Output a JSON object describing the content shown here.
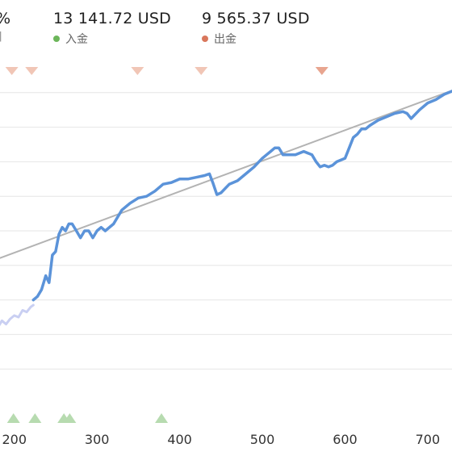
{
  "header": {
    "stats": [
      {
        "value": "%"
      },
      {
        "value": "13 141.72 USD",
        "legend": "入金",
        "color": "#6cb65a"
      },
      {
        "value": "9 565.37 USD",
        "legend": "出金",
        "color": "#d9775c"
      }
    ],
    "left_sublabel": "]"
  },
  "colors": {
    "line": "#5b93d9",
    "line_faded": "#c9cff2",
    "trend": "#b3b3b3",
    "grid": "#e6e6e6",
    "deposit_marker": "#b7dbb0",
    "withdraw_marker": "#f1c6b6",
    "withdraw_marker_strong": "#e8a58f"
  },
  "chart_data": {
    "type": "line",
    "title": "",
    "xlabel": "",
    "ylabel": "",
    "xlim": [
      170,
      745
    ],
    "ylim": [
      0,
      100
    ],
    "x_ticks": [
      200,
      300,
      400,
      500,
      600,
      700
    ],
    "gridlines_y": [
      10,
      20,
      30,
      40,
      50,
      60,
      70,
      80,
      90
    ],
    "grid": "horizontal",
    "series": [
      {
        "style": "faded",
        "x": [
          170,
          175,
          180,
          185,
          190,
          195,
          200,
          205,
          210,
          215,
          220,
          223
        ],
        "y": [
          20,
          20.5,
          22,
          24,
          23,
          24.5,
          25.5,
          25,
          27,
          26.5,
          28,
          28.5
        ]
      },
      {
        "style": "main",
        "x": [
          223,
          228,
          233,
          238,
          242,
          246,
          250,
          254,
          258,
          262,
          266,
          270,
          275,
          280,
          285,
          290,
          295,
          300,
          305,
          310,
          320,
          330,
          340,
          350,
          360,
          370,
          380,
          390,
          400,
          410,
          420,
          430,
          436,
          440,
          445,
          450,
          460,
          470,
          480,
          490,
          500,
          505,
          510,
          515,
          520,
          525,
          530,
          540,
          550,
          560,
          565,
          570,
          575,
          580,
          585,
          590,
          600,
          605,
          610,
          615,
          620,
          625,
          630,
          640,
          650,
          660,
          670,
          675,
          680,
          690,
          700,
          710,
          720,
          730,
          740,
          745
        ],
        "y": [
          30,
          31,
          33,
          37,
          35,
          43,
          44,
          49,
          51,
          50,
          52,
          52,
          50,
          48,
          50,
          50,
          48,
          50,
          51,
          50,
          52,
          56,
          58,
          59.5,
          60,
          61.5,
          63.5,
          64,
          65,
          65,
          65.5,
          66,
          66.5,
          64,
          60.5,
          61,
          63.5,
          64.5,
          66.5,
          68.5,
          71,
          72,
          73,
          74,
          74,
          72,
          72,
          72,
          73,
          72,
          70,
          68.5,
          69,
          68.5,
          69,
          70,
          71,
          74,
          77,
          78,
          79.5,
          79.5,
          80.5,
          82,
          83,
          84,
          84.5,
          84,
          82.5,
          85,
          87,
          88,
          89.5,
          90.5,
          91.5,
          92
        ]
      }
    ],
    "trendline": {
      "x": [
        170,
        745
      ],
      "y": [
        41,
        92
      ]
    },
    "deposit_markers_x": [
      199,
      225,
      260,
      267,
      378
    ],
    "withdraw_markers_x": [
      197,
      221,
      349,
      426,
      572
    ],
    "withdraw_markers_strong_x": [
      572
    ]
  }
}
